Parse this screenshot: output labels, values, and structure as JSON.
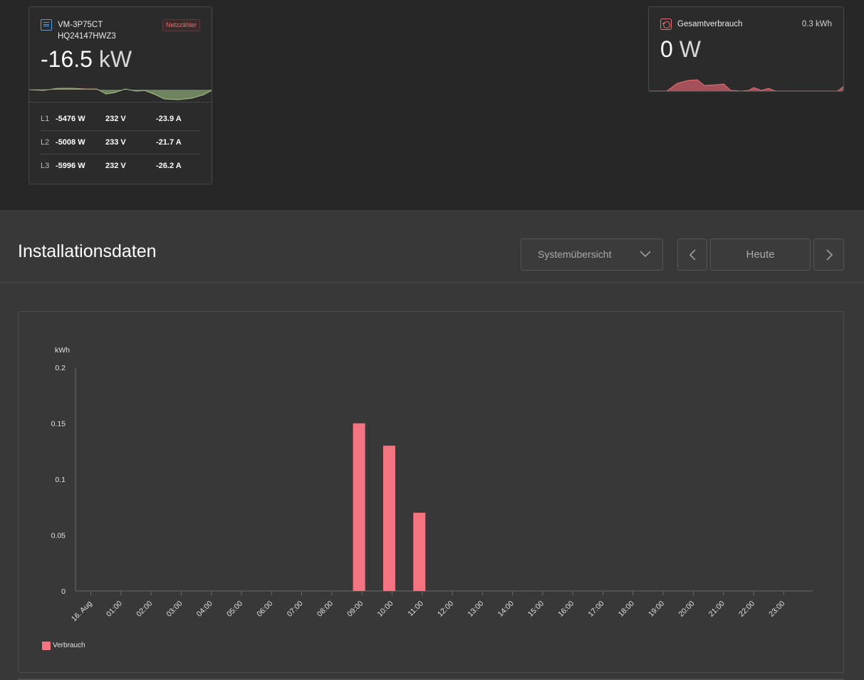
{
  "meter": {
    "name": "VM-3P75CT",
    "serial": "HQ24147HWZ3",
    "badge": "Netzzähler",
    "power_value": "-16.5",
    "power_unit": "kW",
    "icon": "energy-meter-icon",
    "accent": "#5b9bd5",
    "phases": [
      {
        "label": "L1",
        "power": "-5476 W",
        "voltage": "232 V",
        "current": "-23.9 A"
      },
      {
        "label": "L2",
        "power": "-5008 W",
        "voltage": "233 V",
        "current": "-21.7 A"
      },
      {
        "label": "L3",
        "power": "-5996 W",
        "voltage": "232 V",
        "current": "-26.2 A"
      }
    ]
  },
  "consumption": {
    "title": "Gesamtverbrauch",
    "energy": "0.3 kWh",
    "power_value": "0",
    "power_unit": "W",
    "icon": "power-outlet-icon",
    "accent": "#ef6e73"
  },
  "section": {
    "title": "Installationsdaten",
    "select_value": "Systemübersicht",
    "period_label": "Heute"
  },
  "chart_data": {
    "type": "bar",
    "ylabel": "kWh",
    "ylim": [
      0,
      0.2
    ],
    "yticks": [
      "0",
      "0.05",
      "0.1",
      "0.15",
      "0.2"
    ],
    "categories": [
      "16. Aug",
      "01:00",
      "02:00",
      "03:00",
      "04:00",
      "05:00",
      "06:00",
      "07:00",
      "08:00",
      "09:00",
      "10:00",
      "11:00",
      "12:00",
      "13:00",
      "14:00",
      "15:00",
      "16:00",
      "17:00",
      "18:00",
      "19:00",
      "20:00",
      "21:00",
      "22:00",
      "23:00"
    ],
    "series": [
      {
        "name": "Verbrauch",
        "color": "#f47581",
        "values": [
          0,
          0,
          0,
          0,
          0,
          0,
          0,
          0,
          0,
          0.15,
          0.13,
          0.07,
          0,
          0,
          0,
          0,
          0,
          0,
          0,
          0,
          0,
          0,
          0,
          0
        ]
      }
    ],
    "legend": "bottom-left",
    "grid": false
  }
}
